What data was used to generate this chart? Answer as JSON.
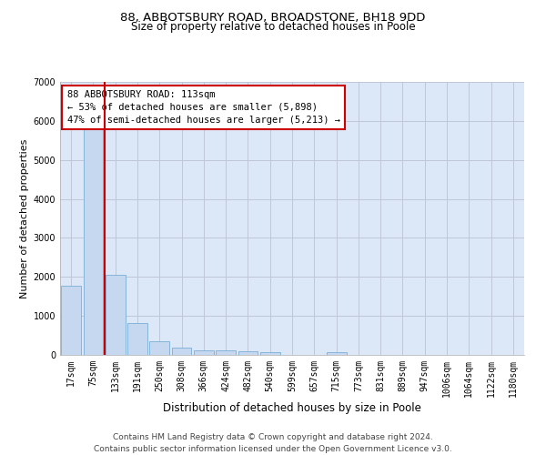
{
  "title1": "88, ABBOTSBURY ROAD, BROADSTONE, BH18 9DD",
  "title2": "Size of property relative to detached houses in Poole",
  "xlabel": "Distribution of detached houses by size in Poole",
  "ylabel": "Number of detached properties",
  "bar_color": "#c5d8f0",
  "bar_edge_color": "#7aaed6",
  "vline_color": "#cc0000",
  "vline_x_index": 1.5,
  "annotation_text": "88 ABBOTSBURY ROAD: 113sqm\n← 53% of detached houses are smaller (5,898)\n47% of semi-detached houses are larger (5,213) →",
  "annotation_box_color": "#ffffff",
  "annotation_box_edge": "#cc0000",
  "categories": [
    "17sqm",
    "75sqm",
    "133sqm",
    "191sqm",
    "250sqm",
    "308sqm",
    "366sqm",
    "424sqm",
    "482sqm",
    "540sqm",
    "599sqm",
    "657sqm",
    "715sqm",
    "773sqm",
    "831sqm",
    "889sqm",
    "947sqm",
    "1006sqm",
    "1064sqm",
    "1122sqm",
    "1180sqm"
  ],
  "values": [
    1780,
    5780,
    2060,
    820,
    340,
    190,
    120,
    110,
    95,
    80,
    0,
    0,
    80,
    0,
    0,
    0,
    0,
    0,
    0,
    0,
    0
  ],
  "ylim": [
    0,
    7000
  ],
  "yticks": [
    0,
    1000,
    2000,
    3000,
    4000,
    5000,
    6000,
    7000
  ],
  "grid_color": "#c0c8d8",
  "bg_color": "#dce8f8",
  "footnote": "Contains HM Land Registry data © Crown copyright and database right 2024.\nContains public sector information licensed under the Open Government Licence v3.0.",
  "title_fontsize": 9.5,
  "subtitle_fontsize": 8.5,
  "tick_fontsize": 7,
  "ylabel_fontsize": 8,
  "xlabel_fontsize": 8.5,
  "footnote_fontsize": 6.5
}
